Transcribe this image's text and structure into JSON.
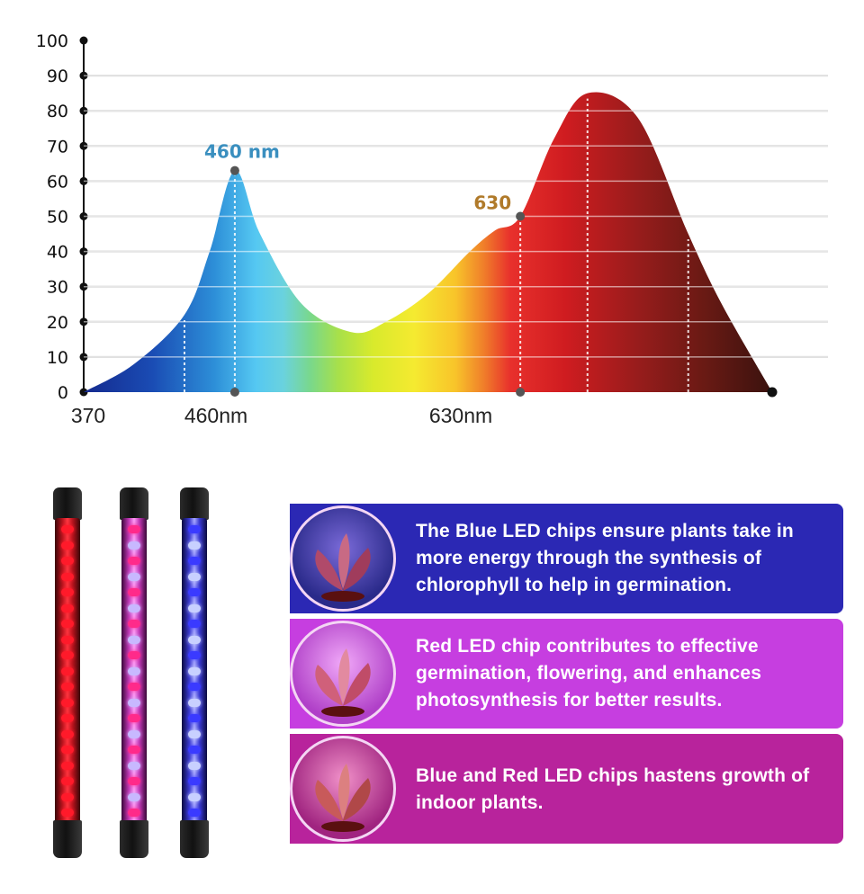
{
  "chart_data": {
    "type": "area",
    "title": "",
    "xlabel": "",
    "ylabel": "",
    "ylim": [
      0,
      100
    ],
    "y_ticks": [
      0,
      10,
      20,
      30,
      40,
      50,
      60,
      70,
      80,
      90,
      100
    ],
    "x_tick_labels": [
      "370",
      "460nm",
      "630nm"
    ],
    "grid": "horizontal",
    "series": [
      {
        "x": [
          370,
          400,
          430,
          445,
          460,
          475,
          500,
          530,
          550,
          575,
          600,
          615,
          630,
          650,
          670,
          700,
          730,
          750,
          780
        ],
        "y": [
          0,
          8,
          22,
          40,
          63,
          45,
          25,
          17,
          20,
          28,
          40,
          46,
          50,
          72,
          85,
          78,
          45,
          25,
          0
        ]
      }
    ],
    "annotations": [
      {
        "label": "460 nm",
        "x": 460,
        "y": 63,
        "color": "#3a8fbf"
      },
      {
        "label": "630",
        "x": 630,
        "y": 50,
        "color": "#b07a2a"
      }
    ]
  },
  "led_bars": [
    {
      "color": "red"
    },
    {
      "color": "pink-purple"
    },
    {
      "color": "blue-purple"
    }
  ],
  "panels": [
    {
      "text": "The Blue LED chips ensure plants take in more energy through the synthesis of chlorophyll to help in germination.",
      "color": "#2b28b4"
    },
    {
      "text": "Red LED chip contributes to effective germination, flowering, and enhances photosynthesis for better results.",
      "color": "#c63ee0"
    },
    {
      "text": "Blue and Red LED chips hastens growth of indoor plants.",
      "color": "#b8239c"
    }
  ]
}
